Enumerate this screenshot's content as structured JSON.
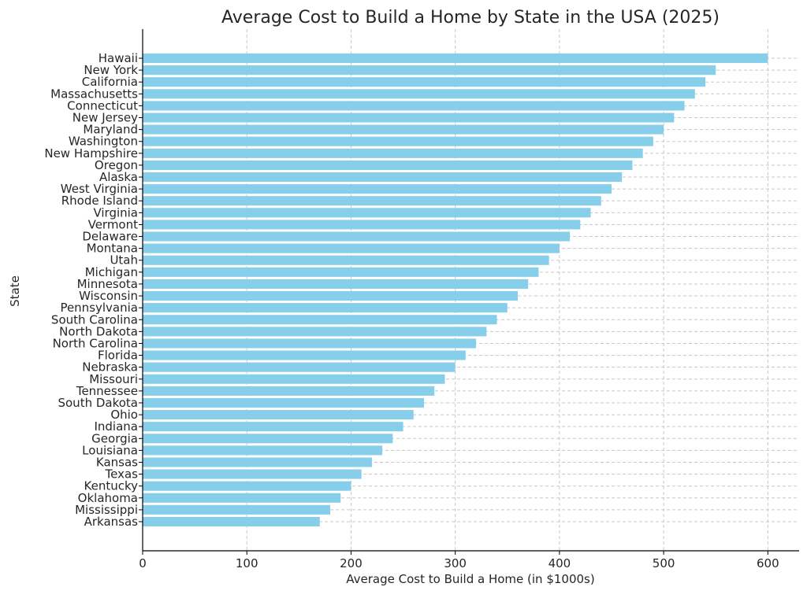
{
  "chart_data": {
    "type": "bar",
    "orientation": "horizontal",
    "title": "Average Cost to Build a Home by State in the USA (2025)",
    "xlabel": "Average Cost to Build a Home (in $1000s)",
    "ylabel": "State",
    "xlim": [
      0,
      630
    ],
    "xticks": [
      0,
      100,
      200,
      300,
      400,
      500,
      600
    ],
    "grid": true,
    "bar_color": "#87CEEB",
    "categories": [
      "Hawaii",
      "New York",
      "California",
      "Massachusetts",
      "Connecticut",
      "New Jersey",
      "Maryland",
      "Washington",
      "New Hampshire",
      "Oregon",
      "Alaska",
      "West Virginia",
      "Rhode Island",
      "Virginia",
      "Vermont",
      "Delaware",
      "Montana",
      "Utah",
      "Michigan",
      "Minnesota",
      "Wisconsin",
      "Pennsylvania",
      "South Carolina",
      "North Dakota",
      "North Carolina",
      "Florida",
      "Nebraska",
      "Missouri",
      "Tennessee",
      "South Dakota",
      "Ohio",
      "Indiana",
      "Georgia",
      "Louisiana",
      "Kansas",
      "Texas",
      "Kentucky",
      "Oklahoma",
      "Mississippi",
      "Arkansas"
    ],
    "values": [
      600,
      550,
      540,
      530,
      520,
      510,
      500,
      490,
      480,
      470,
      460,
      450,
      440,
      430,
      420,
      410,
      400,
      390,
      380,
      370,
      360,
      350,
      340,
      330,
      320,
      310,
      300,
      290,
      280,
      270,
      260,
      250,
      240,
      230,
      220,
      210,
      200,
      190,
      180,
      170
    ]
  }
}
